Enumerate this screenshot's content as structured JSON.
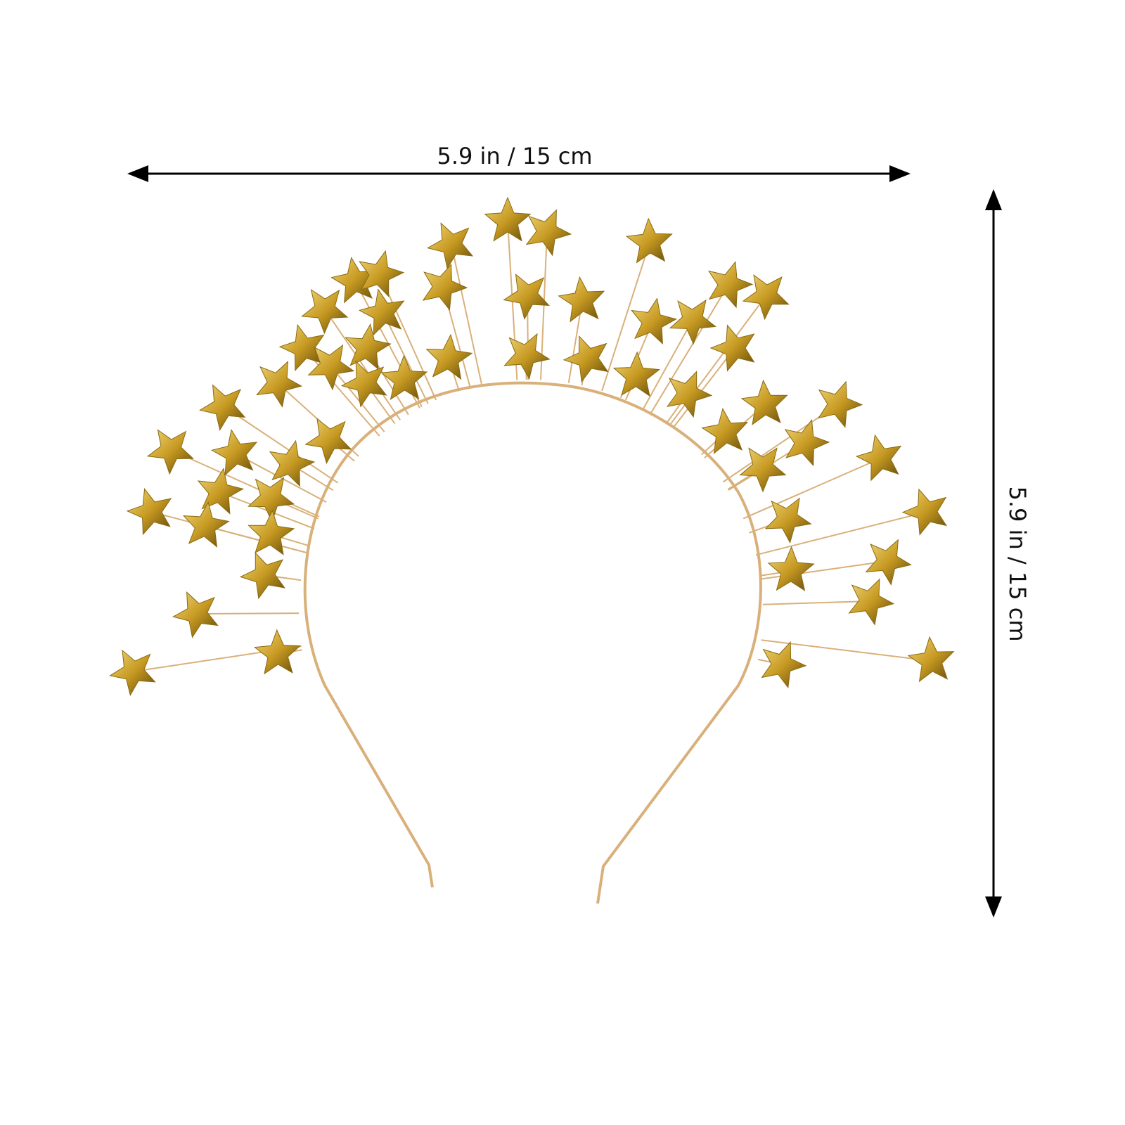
{
  "dimensions": {
    "width_label": "5.9 in / 15 cm",
    "height_label": "5.9 in / 15 cm"
  },
  "product": {
    "icon": "star-headband-image",
    "colors": {
      "star": "#c9a227",
      "star_dark": "#6b5410",
      "wire": "#d9b07a"
    }
  }
}
